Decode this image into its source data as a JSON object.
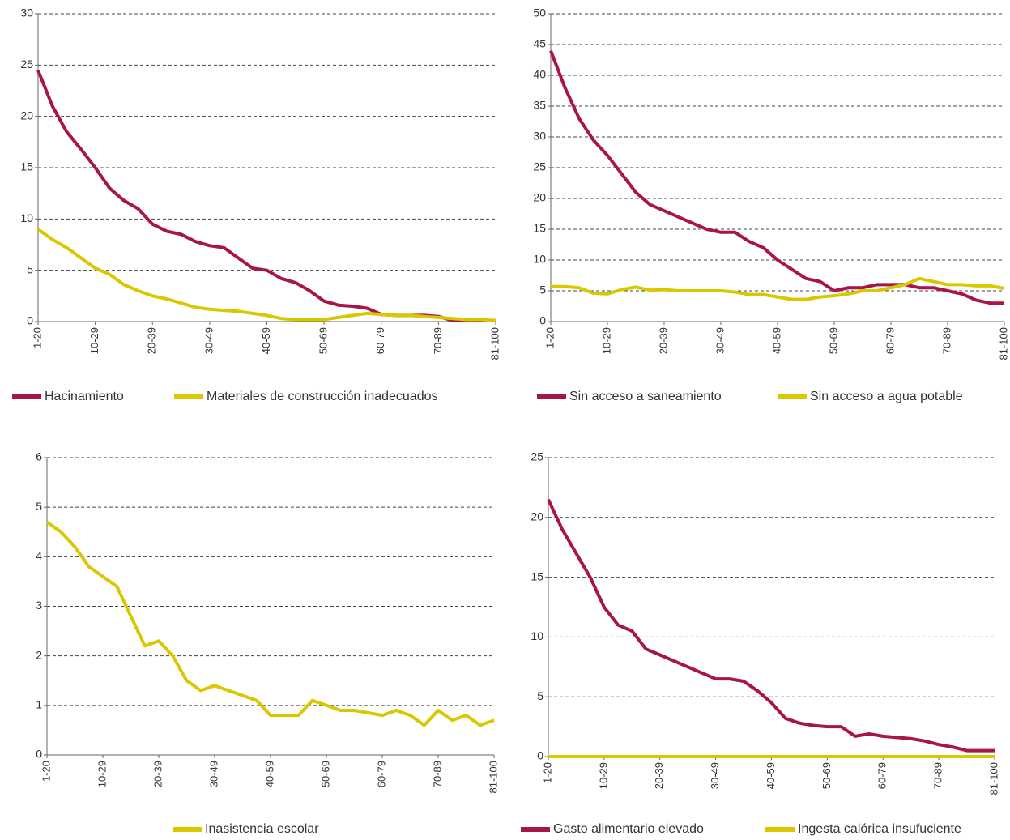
{
  "chart_data": [
    {
      "type": "line",
      "categories": [
        "1-20",
        null,
        null,
        null,
        "10-29",
        null,
        null,
        null,
        "20-39",
        null,
        null,
        null,
        "30-49",
        null,
        null,
        null,
        "40-59",
        null,
        null,
        null,
        "50-69",
        null,
        null,
        null,
        "60-79",
        null,
        null,
        null,
        "70-89",
        null,
        null,
        null,
        "81-100"
      ],
      "ylim": [
        0,
        30
      ],
      "yticks": [
        0,
        5,
        10,
        15,
        20,
        25,
        30
      ],
      "grid": true,
      "series": [
        {
          "name": "Hacinamiento",
          "color": "#a8154a",
          "values": [
            24.5,
            21,
            18.5,
            16.8,
            15,
            13,
            11.8,
            11,
            9.5,
            8.8,
            8.5,
            7.8,
            7.4,
            7.2,
            6.2,
            5.2,
            5,
            4.2,
            3.8,
            3,
            2,
            1.6,
            1.5,
            1.3,
            0.7,
            0.6,
            0.6,
            0.6,
            0.5,
            0.1,
            0.1,
            0.1,
            0.1
          ]
        },
        {
          "name": "Materiales de construcción inadecuados",
          "color": "#d9c800",
          "values": [
            9,
            8,
            7.2,
            6.2,
            5.2,
            4.6,
            3.6,
            3,
            2.5,
            2.2,
            1.8,
            1.4,
            1.2,
            1.1,
            1,
            0.8,
            0.6,
            0.3,
            0.2,
            0.2,
            0.2,
            0.4,
            0.6,
            0.8,
            0.7,
            0.6,
            0.6,
            0.5,
            0.4,
            0.3,
            0.2,
            0.2,
            0.1
          ]
        }
      ]
    },
    {
      "type": "line",
      "categories": [
        "1-20",
        null,
        null,
        null,
        "10-29",
        null,
        null,
        null,
        "20-39",
        null,
        null,
        null,
        "30-49",
        null,
        null,
        null,
        "40-59",
        null,
        null,
        null,
        "50-69",
        null,
        null,
        null,
        "60-79",
        null,
        null,
        null,
        "70-89",
        null,
        null,
        null,
        "81-100"
      ],
      "ylim": [
        0,
        50
      ],
      "yticks": [
        0,
        5,
        10,
        15,
        20,
        25,
        30,
        35,
        40,
        45,
        50
      ],
      "grid": true,
      "series": [
        {
          "name": "Sin acceso a saneamiento",
          "color": "#a8154a",
          "values": [
            44,
            38,
            33,
            29.5,
            27,
            24,
            21,
            19,
            18,
            17,
            16,
            15,
            14.5,
            14.5,
            13,
            12,
            10,
            8.5,
            7,
            6.5,
            5,
            5.5,
            5.5,
            6,
            6,
            6,
            5.5,
            5.5,
            5,
            4.5,
            3.5,
            3,
            3
          ]
        },
        {
          "name": "Sin acceso a agua potable",
          "color": "#d9c800",
          "values": [
            5.7,
            5.7,
            5.5,
            4.6,
            4.5,
            5.2,
            5.6,
            5.1,
            5.2,
            5,
            5,
            5,
            5,
            4.8,
            4.4,
            4.4,
            4,
            3.6,
            3.6,
            4,
            4.2,
            4.5,
            5,
            5,
            5.5,
            6,
            7,
            6.5,
            6,
            6,
            5.8,
            5.8,
            5.4
          ]
        }
      ]
    },
    {
      "type": "line",
      "categories": [
        "1-20",
        null,
        null,
        null,
        "10-29",
        null,
        null,
        null,
        "20-39",
        null,
        null,
        null,
        "30-49",
        null,
        null,
        null,
        "40-59",
        null,
        null,
        null,
        "50-69",
        null,
        null,
        null,
        "60-79",
        null,
        null,
        null,
        "70-89",
        null,
        null,
        null,
        "81-100"
      ],
      "ylim": [
        0,
        6
      ],
      "yticks": [
        0,
        1,
        2,
        3,
        4,
        5,
        6
      ],
      "grid": true,
      "series": [
        {
          "name": "Inasistencia escolar",
          "color": "#d9c800",
          "values": [
            4.7,
            4.5,
            4.2,
            3.8,
            3.6,
            3.4,
            2.8,
            2.2,
            2.3,
            2,
            1.5,
            1.3,
            1.4,
            1.3,
            1.2,
            1.1,
            0.8,
            0.8,
            0.8,
            1.1,
            1,
            0.9,
            0.9,
            0.85,
            0.8,
            0.9,
            0.8,
            0.6,
            0.9,
            0.7,
            0.8,
            0.6,
            0.7
          ]
        }
      ]
    },
    {
      "type": "line",
      "categories": [
        "1-20",
        null,
        null,
        null,
        "10-29",
        null,
        null,
        null,
        "20-39",
        null,
        null,
        null,
        "30-49",
        null,
        null,
        null,
        "40-59",
        null,
        null,
        null,
        "50-69",
        null,
        null,
        null,
        "60-79",
        null,
        null,
        null,
        "70-89",
        null,
        null,
        null,
        "81-100"
      ],
      "ylim": [
        0,
        25
      ],
      "yticks": [
        0,
        5,
        10,
        15,
        20,
        25
      ],
      "grid": true,
      "series": [
        {
          "name": "Gasto alimentario elevado",
          "color": "#a8154a",
          "values": [
            21.5,
            19,
            17,
            15,
            12.5,
            11,
            10.5,
            9,
            8.5,
            8,
            7.5,
            7,
            6.5,
            6.5,
            6.3,
            5.5,
            4.5,
            3.2,
            2.8,
            2.6,
            2.5,
            2.5,
            1.7,
            1.9,
            1.7,
            1.6,
            1.5,
            1.3,
            1,
            0.8,
            0.5,
            0.5,
            0.5
          ]
        },
        {
          "name": "Ingesta calórica insufuciente",
          "color": "#d9c800",
          "values": [
            0,
            0,
            0,
            0,
            0,
            0,
            0,
            0,
            0,
            0,
            0,
            0,
            0,
            0,
            0,
            0,
            0,
            0,
            0,
            0,
            0,
            0,
            0,
            0,
            0,
            0,
            0,
            0,
            0,
            0,
            0,
            0,
            0
          ]
        }
      ]
    }
  ]
}
